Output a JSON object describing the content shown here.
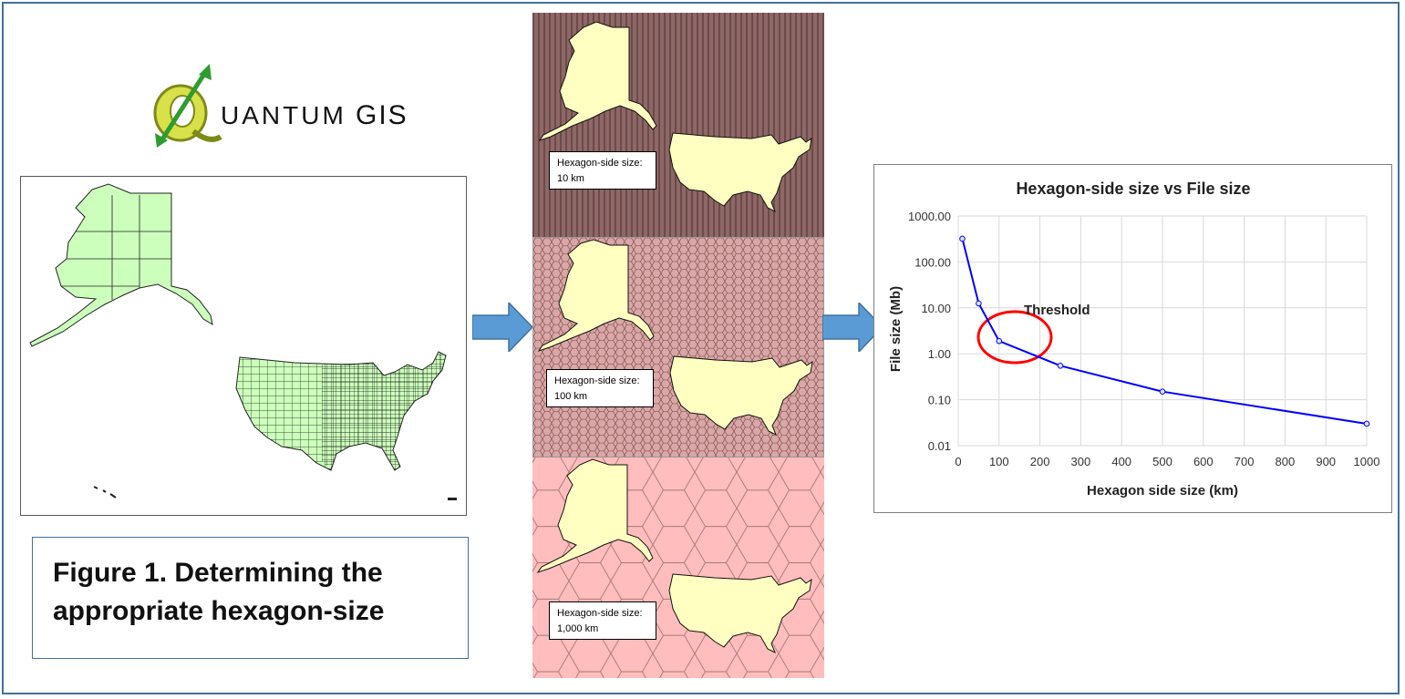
{
  "logo": {
    "text_left": "UANTUM",
    "text_right": "GIS"
  },
  "panels": [
    {
      "label_line1": "Hexagon-side size:",
      "label_line2": "10 km",
      "fill": "#8e6767"
    },
    {
      "label_line1": "Hexagon-side size:",
      "label_line2": "100 km",
      "fill": "#d8a7a7"
    },
    {
      "label_line1": "Hexagon-side size:",
      "label_line2": "1,000 km",
      "fill": "#ffbdbd"
    }
  ],
  "caption": {
    "line1": "Figure 1. Determining the",
    "line2": "appropriate hexagon-size"
  },
  "colors": {
    "frame": "#41719c",
    "arrow": "#5b9bd5",
    "line": "#0000ff",
    "threshold": "#ff0000",
    "map_fill": "#ffffc1",
    "county_fill": "#ccffbb"
  },
  "chart_data": {
    "type": "line",
    "title": "Hexagon-side size vs File size",
    "xlabel": "Hexagon side size (km)",
    "ylabel": "File size (Mb)",
    "x_ticks": [
      "0",
      "100",
      "200",
      "300",
      "400",
      "500",
      "600",
      "700",
      "800",
      "900",
      "1000"
    ],
    "y_ticks": [
      "0.01",
      "0.10",
      "1.00",
      "10.00",
      "100.00",
      "1000.00"
    ],
    "xlim": [
      0,
      1000
    ],
    "ylim": [
      0.01,
      1000
    ],
    "y_scale": "log",
    "grid": true,
    "series": [
      {
        "x": [
          10,
          50,
          100,
          250,
          500,
          1000
        ],
        "y": [
          320,
          12.5,
          1.9,
          0.55,
          0.15,
          0.03
        ]
      }
    ],
    "annotation": {
      "text": "Threshold",
      "x": 140,
      "y": 2.2
    }
  }
}
